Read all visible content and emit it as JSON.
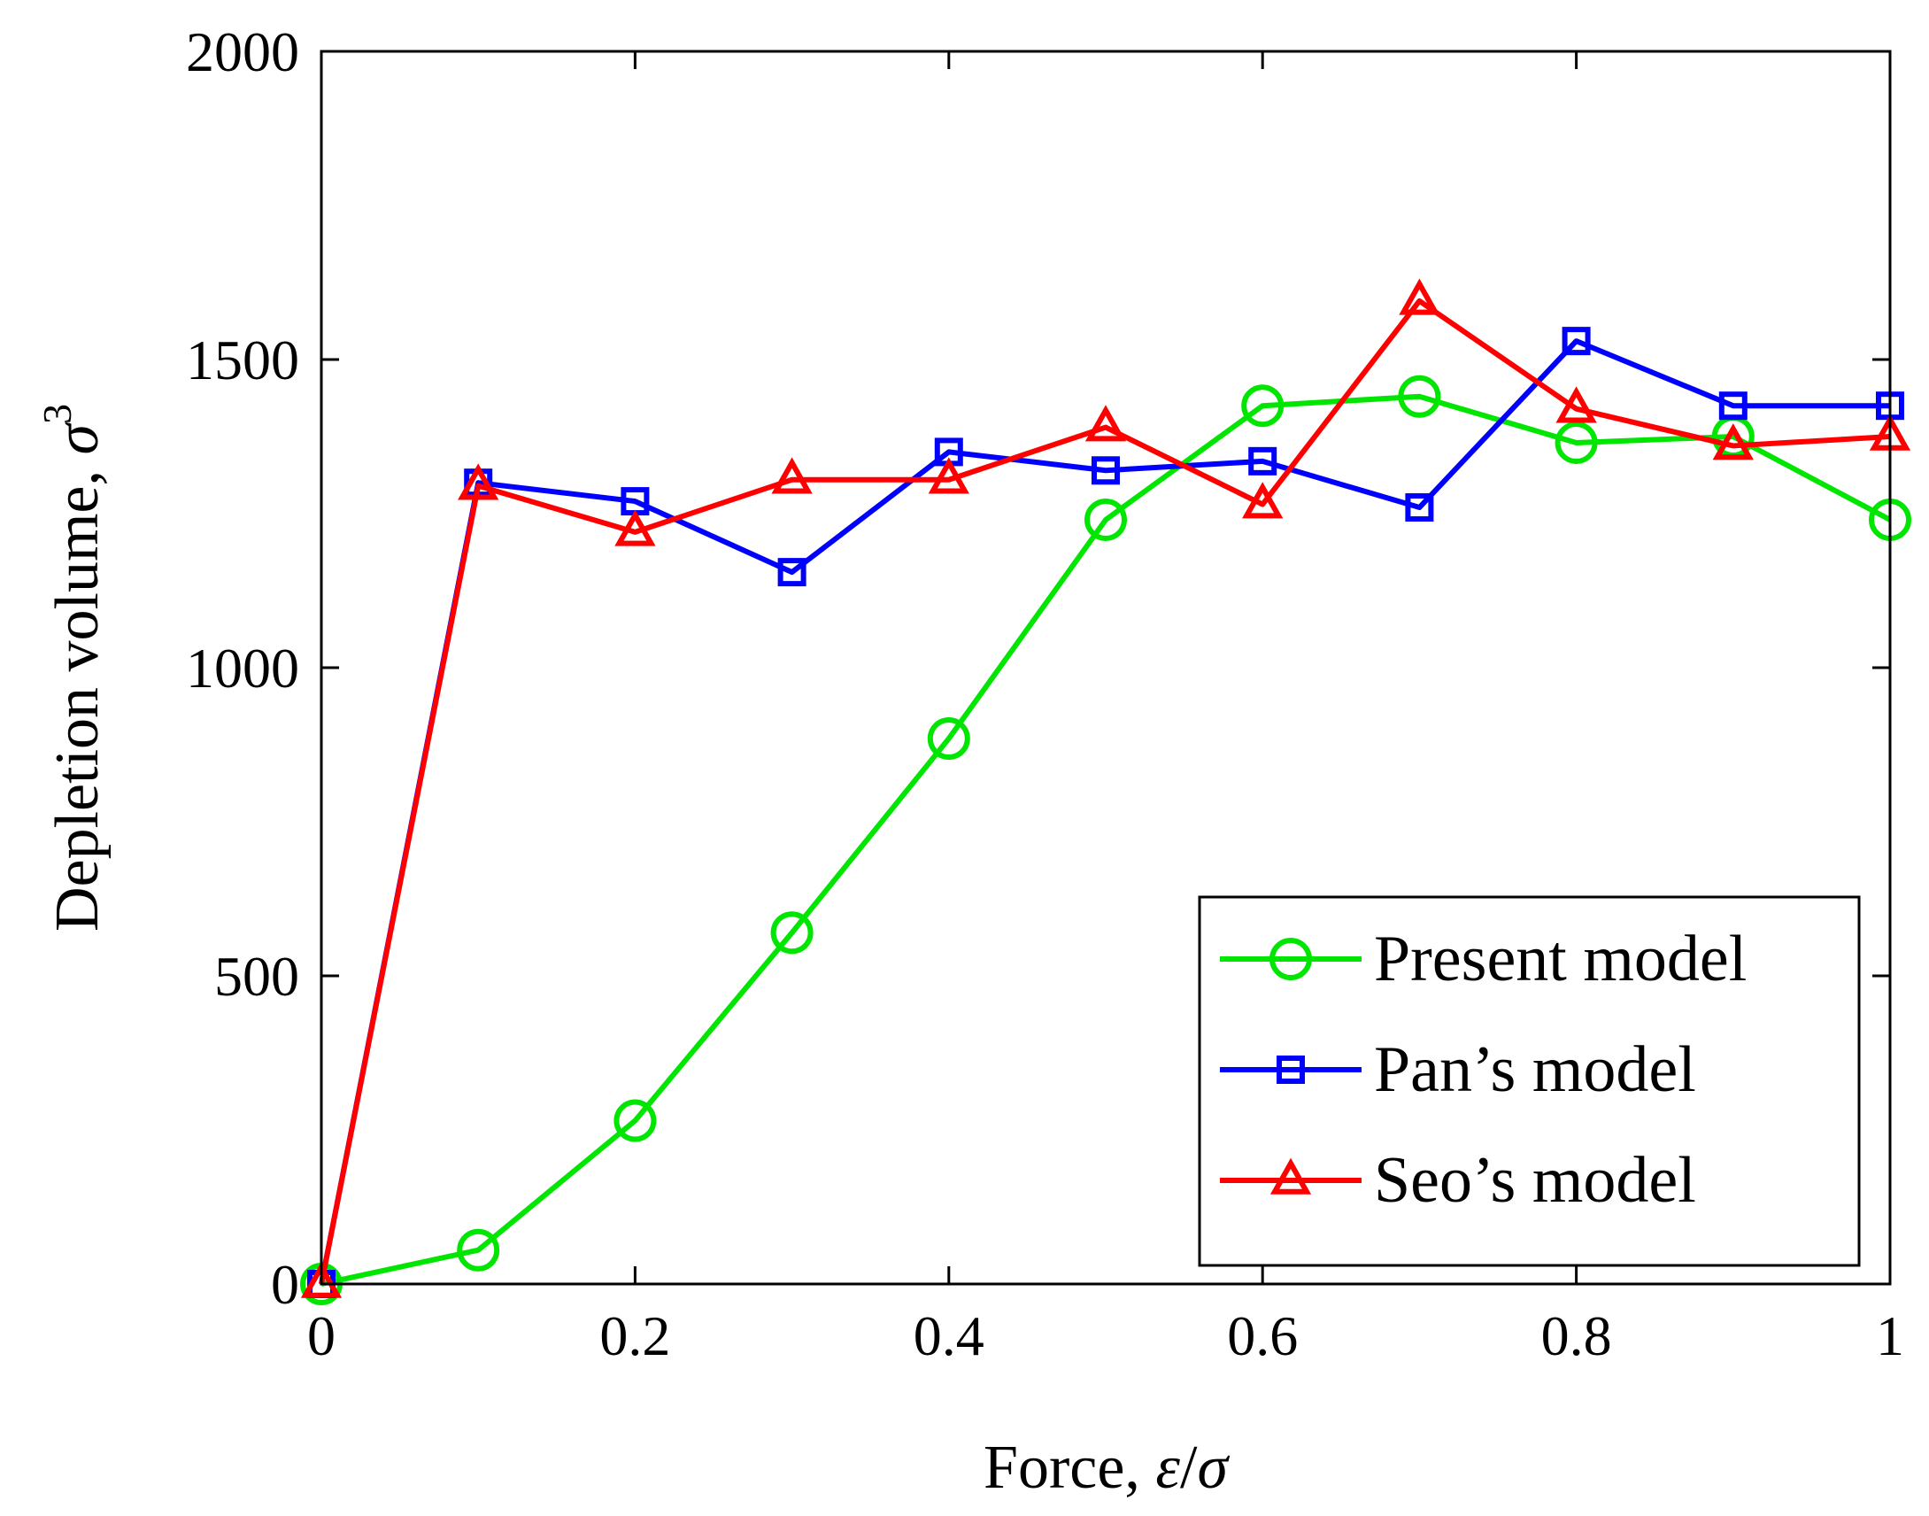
{
  "chart_data": {
    "type": "line",
    "title": "",
    "xlabel": "Force, ε/σ",
    "xlabel_parts": {
      "prefix": "Force, ",
      "var1": "ε",
      "sep": "/",
      "var2": "σ"
    },
    "ylabel": "Depletion volume, σ³",
    "ylabel_parts": {
      "prefix": "Depletion volume, ",
      "var": "σ",
      "exp": "3"
    },
    "xlim": [
      0,
      1
    ],
    "ylim": [
      0,
      2000
    ],
    "xticks": [
      0,
      0.2,
      0.4,
      0.6,
      0.8,
      1
    ],
    "xtick_labels": [
      "0",
      "0.2",
      "0.4",
      "0.6",
      "0.8",
      "1"
    ],
    "yticks": [
      0,
      500,
      1000,
      1500,
      2000
    ],
    "ytick_labels": [
      "0",
      "500",
      "1000",
      "1500",
      "2000"
    ],
    "grid": false,
    "legend_position": "bottom-right",
    "x": [
      0,
      0.1,
      0.2,
      0.3,
      0.4,
      0.5,
      0.6,
      0.7,
      0.8,
      0.9,
      1.0
    ],
    "series": [
      {
        "name": "Present model",
        "color": "#00e600",
        "marker": "circle",
        "values": [
          0,
          55,
          265,
          570,
          885,
          1240,
          1425,
          1440,
          1365,
          1375,
          1240
        ]
      },
      {
        "name": "Pan’s model",
        "color": "#0000ff",
        "marker": "square",
        "values": [
          0,
          1300,
          1270,
          1155,
          1350,
          1320,
          1335,
          1260,
          1530,
          1425,
          1425
        ]
      },
      {
        "name": "Seo’s model",
        "color": "#ff0000",
        "marker": "triangle",
        "values": [
          0,
          1295,
          1220,
          1305,
          1305,
          1390,
          1265,
          1595,
          1420,
          1360,
          1375
        ]
      }
    ]
  }
}
